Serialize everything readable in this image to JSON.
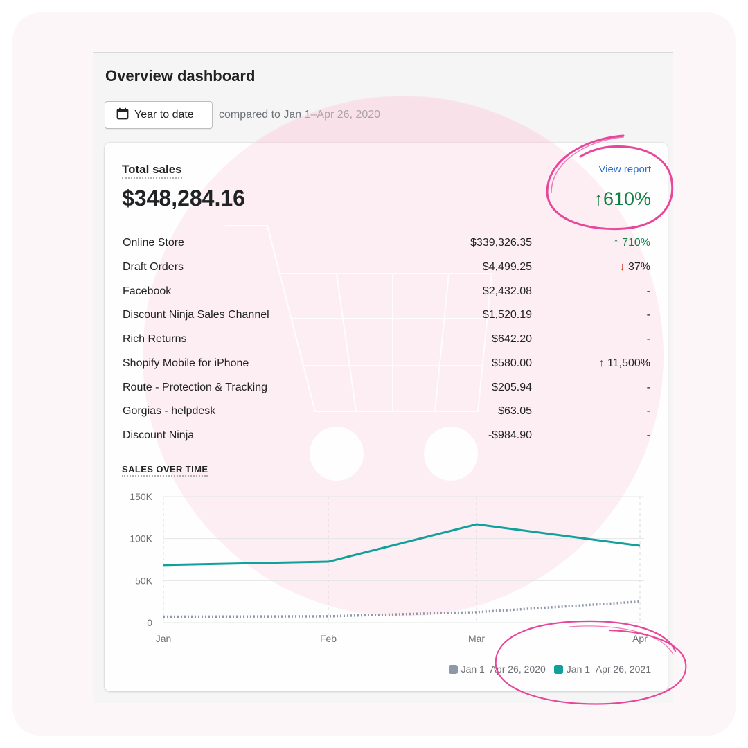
{
  "header": {
    "title": "Overview dashboard",
    "date_button_label": "Year to date",
    "compare_text": "compared to Jan 1–Apr 26, 2020"
  },
  "total_sales": {
    "label": "Total sales",
    "value": "$348,284.16",
    "view_report_label": "View report",
    "change": "610%",
    "change_direction": "up"
  },
  "sales_breakdown": [
    {
      "name": "Online Store",
      "amount": "$339,326.35",
      "change": "710%",
      "direction": "up"
    },
    {
      "name": "Draft Orders",
      "amount": "$4,499.25",
      "change": "37%",
      "direction": "down"
    },
    {
      "name": "Facebook",
      "amount": "$2,432.08",
      "change": "-",
      "direction": "none"
    },
    {
      "name": "Discount Ninja Sales Channel",
      "amount": "$1,520.19",
      "change": "-",
      "direction": "none"
    },
    {
      "name": "Rich Returns",
      "amount": "$642.20",
      "change": "-",
      "direction": "none"
    },
    {
      "name": "Shopify Mobile for iPhone",
      "amount": "$580.00",
      "change": "11,500%",
      "direction": "up"
    },
    {
      "name": "Route - Protection & Tracking",
      "amount": "$205.94",
      "change": "-",
      "direction": "none"
    },
    {
      "name": "Gorgias - helpdesk",
      "amount": "$63.05",
      "change": "-",
      "direction": "none"
    },
    {
      "name": "Discount Ninja",
      "amount": "-$984.90",
      "change": "-",
      "direction": "none"
    }
  ],
  "sales_over_time": {
    "label": "SALES OVER TIME"
  },
  "colors": {
    "accent_teal": "#12a09a",
    "series_2020": "#8f98a8",
    "positive": "#108043",
    "negative": "#d82c0d",
    "link": "#2c6ecb",
    "annotation_pink": "#e8469a"
  },
  "chart_data": {
    "type": "line",
    "x": [
      "Jan",
      "Feb",
      "Mar",
      "Apr"
    ],
    "y_ticks": [
      "150K",
      "100K",
      "50K",
      "0"
    ],
    "ylim": [
      0,
      150000
    ],
    "grid": true,
    "legend_position": "bottom-right",
    "series": [
      {
        "name": "Jan 1–Apr 26, 2020",
        "values": [
          7000,
          7500,
          12500,
          25000
        ],
        "style": "dotted",
        "color": "#8f98a8"
      },
      {
        "name": "Jan 1–Apr 26, 2021",
        "values": [
          68500,
          72500,
          117000,
          91500
        ],
        "style": "solid",
        "color": "#12a09a"
      }
    ]
  }
}
